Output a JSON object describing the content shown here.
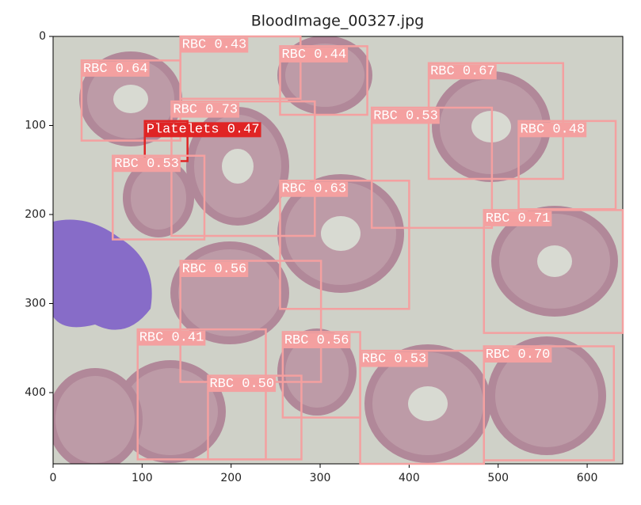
{
  "chart_data": {
    "type": "detection",
    "title": "BloodImage_00327.jpg",
    "xlim": [
      0,
      640
    ],
    "ylim": [
      480,
      0
    ],
    "xticks": [
      0,
      100,
      200,
      300,
      400,
      500,
      600
    ],
    "yticks": [
      0,
      100,
      200,
      300,
      400
    ],
    "boxes": [
      {
        "label": "RBC 0.64",
        "color": "#f4a0a0",
        "x": [
          32,
          143
        ],
        "y": [
          27,
          117
        ]
      },
      {
        "label": "RBC 0.43",
        "color": "#f4a0a0",
        "x": [
          143,
          278
        ],
        "y": [
          0,
          70
        ]
      },
      {
        "label": "RBC 0.44",
        "color": "#f4a0a0",
        "x": [
          255,
          353
        ],
        "y": [
          11,
          88
        ]
      },
      {
        "label": "RBC 0.67",
        "color": "#f4a0a0",
        "x": [
          422,
          573
        ],
        "y": [
          30,
          160
        ]
      },
      {
        "label": "RBC 0.73",
        "color": "#f4a0a0",
        "x": [
          133,
          294
        ],
        "y": [
          73,
          224
        ]
      },
      {
        "label": "Platelets 0.47",
        "color": "#e02424",
        "x": [
          103,
          151
        ],
        "y": [
          95,
          140
        ]
      },
      {
        "label": "RBC 0.53",
        "color": "#f4a0a0",
        "x": [
          67,
          170
        ],
        "y": [
          134,
          228
        ]
      },
      {
        "label": "RBC 0.53",
        "color": "#f4a0a0",
        "x": [
          358,
          493
        ],
        "y": [
          80,
          215
        ]
      },
      {
        "label": "RBC 0.48",
        "color": "#f4a0a0",
        "x": [
          523,
          632
        ],
        "y": [
          95,
          194
        ]
      },
      {
        "label": "RBC 0.63",
        "color": "#f4a0a0",
        "x": [
          255,
          400
        ],
        "y": [
          162,
          306
        ]
      },
      {
        "label": "RBC 0.71",
        "color": "#f4a0a0",
        "x": [
          484,
          640
        ],
        "y": [
          195,
          333
        ]
      },
      {
        "label": "RBC 0.56",
        "color": "#f4a0a0",
        "x": [
          143,
          301
        ],
        "y": [
          252,
          388
        ]
      },
      {
        "label": "RBC 0.41",
        "color": "#f4a0a0",
        "x": [
          95,
          239
        ],
        "y": [
          329,
          475
        ]
      },
      {
        "label": "RBC 0.56",
        "color": "#f4a0a0",
        "x": [
          258,
          345
        ],
        "y": [
          332,
          428
        ]
      },
      {
        "label": "RBC 0.53",
        "color": "#f4a0a0",
        "x": [
          345,
          484
        ],
        "y": [
          353,
          480
        ]
      },
      {
        "label": "RBC 0.70",
        "color": "#f4a0a0",
        "x": [
          484,
          630
        ],
        "y": [
          348,
          476
        ]
      },
      {
        "label": "RBC 0.50",
        "color": "#f4a0a0",
        "x": [
          174,
          279
        ],
        "y": [
          381,
          475
        ]
      }
    ]
  }
}
